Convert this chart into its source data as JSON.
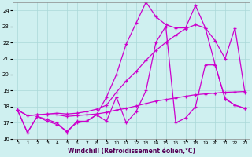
{
  "xlabel": "Windchill (Refroidissement éolien,°C)",
  "background_color": "#cff0f0",
  "grid_color": "#aad8d8",
  "line_color": "#cc00cc",
  "x_values": [
    0,
    1,
    2,
    3,
    4,
    5,
    6,
    7,
    8,
    9,
    10,
    11,
    12,
    13,
    14,
    15,
    16,
    17,
    18,
    19,
    20,
    21,
    22,
    23
  ],
  "xlim": [
    -0.5,
    23.5
  ],
  "ylim": [
    16,
    24.5
  ],
  "yticks": [
    16,
    17,
    18,
    19,
    20,
    21,
    22,
    23,
    24
  ],
  "lines": [
    [
      17.8,
      16.4,
      17.4,
      17.2,
      17.0,
      16.4,
      17.1,
      17.1,
      17.5,
      17.1,
      18.6,
      17.0,
      17.7,
      19.0,
      22.0,
      23.0,
      17.0,
      17.3,
      18.0,
      20.6,
      20.6,
      18.5,
      18.1,
      17.9
    ],
    [
      17.8,
      16.4,
      17.4,
      17.1,
      16.9,
      16.5,
      17.0,
      17.1,
      17.5,
      18.6,
      20.0,
      21.9,
      23.2,
      24.5,
      23.6,
      23.1,
      22.9,
      22.9,
      24.3,
      22.9,
      20.6,
      18.5,
      18.1,
      17.9
    ],
    [
      17.8,
      17.45,
      17.5,
      17.5,
      17.5,
      17.4,
      17.45,
      17.5,
      17.55,
      17.65,
      17.8,
      17.9,
      18.05,
      18.2,
      18.35,
      18.45,
      18.55,
      18.65,
      18.75,
      18.8,
      18.85,
      18.9,
      18.92,
      18.95
    ],
    [
      17.8,
      17.45,
      17.5,
      17.55,
      17.6,
      17.55,
      17.6,
      17.7,
      17.85,
      18.1,
      18.9,
      19.6,
      20.2,
      20.9,
      21.5,
      22.0,
      22.45,
      22.85,
      23.1,
      22.9,
      22.1,
      21.0,
      22.9,
      18.9
    ]
  ]
}
